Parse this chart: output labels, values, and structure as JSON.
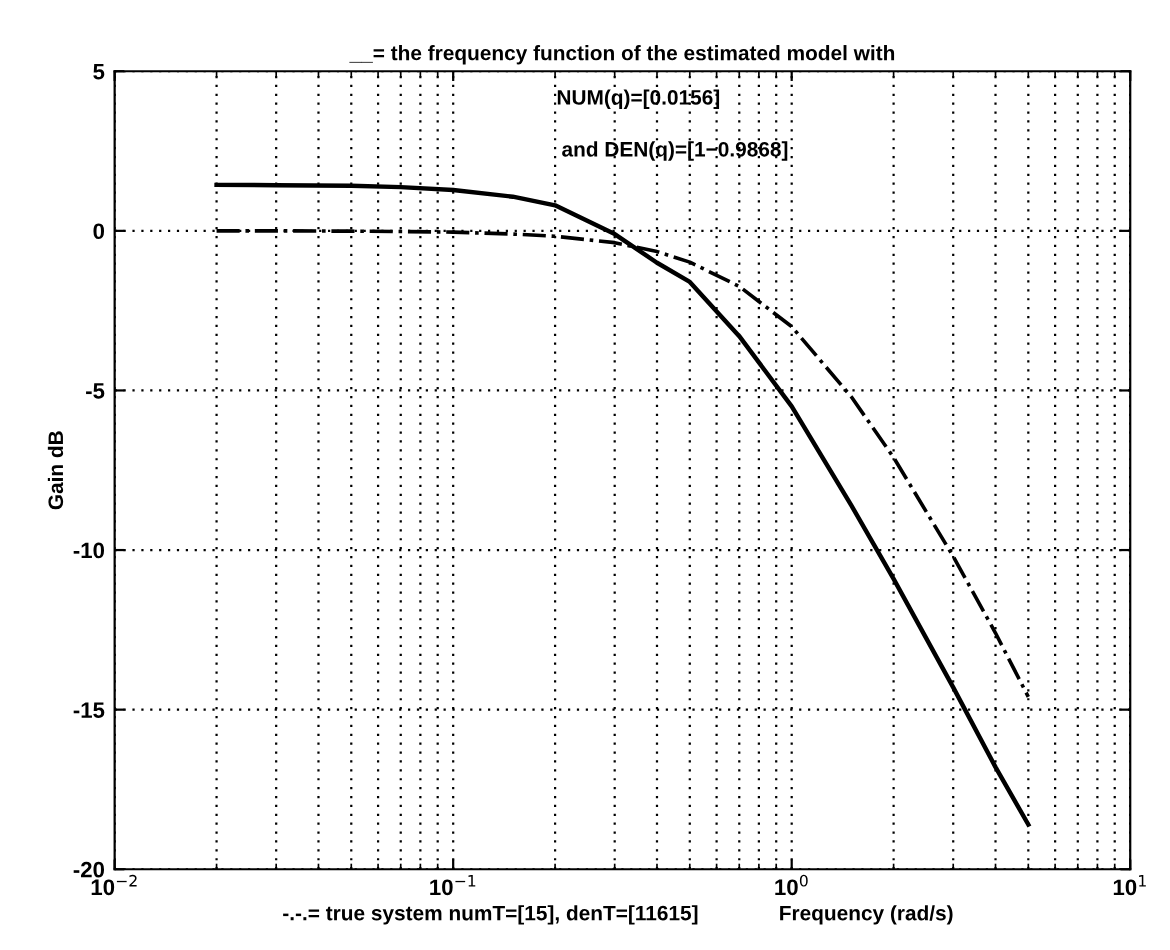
{
  "chart_data": {
    "type": "line",
    "title": "__= the frequency function of the estimated model with",
    "xlabel": "Frequency (rad/s)",
    "ylabel": "Gain dB",
    "annotations": [
      "NUM(q)=[0.0156]",
      "and DEN(q)=[1−0.9868]",
      "-.-.= true system numT=[15], denT=[11615]"
    ],
    "log": "x",
    "xlim": [
      0.01,
      10
    ],
    "xticks": [
      {
        "value": 0.01,
        "label": "10$^{−2}$"
      },
      {
        "value": 0.1,
        "label": "10$^{−1}$"
      },
      {
        "value": 1,
        "label": "10$^{0}$"
      },
      {
        "value": 10,
        "label": "10$^{1}$"
      }
    ],
    "ylim": [
      -20,
      5
    ],
    "yticks": [
      -20,
      -15,
      -10,
      -5,
      0,
      5
    ],
    "grid": true,
    "marker": "none",
    "x": [
      0.02,
      0.03,
      0.05,
      0.07,
      0.1,
      0.15,
      0.2,
      0.3,
      0.4,
      0.5,
      0.7,
      1,
      1.5,
      2,
      3,
      4,
      5
    ],
    "series": [
      {
        "color": "#000000",
        "line_style": "solid",
        "values": [
          1.44,
          1.43,
          1.41,
          1.37,
          1.28,
          1.07,
          0.8,
          -0.1,
          -1.0,
          -1.6,
          -3.3,
          -5.5,
          -8.6,
          -10.9,
          -14.3,
          -16.8,
          -18.6
        ]
      },
      {
        "color": "#000000",
        "line_style": "dashdot",
        "values": [
          0,
          0,
          -0.01,
          -0.02,
          -0.04,
          -0.1,
          -0.17,
          -0.37,
          -0.65,
          -0.98,
          -1.74,
          -3.0,
          -5.2,
          -7.1,
          -10.2,
          -12.6,
          -14.6
        ]
      }
    ]
  }
}
